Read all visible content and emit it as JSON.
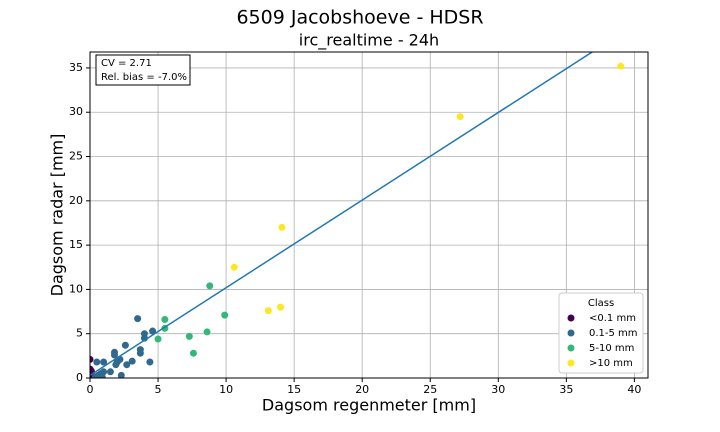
{
  "chart_data": {
    "type": "scatter",
    "title": "6509 Jacobshoeve - HDSR",
    "subtitle": "irc_realtime - 24h",
    "x_label": "Dagsom regenmeter [mm]",
    "y_label": "Dagsom radar [mm]",
    "annotations": [
      "CV = 2.71",
      "Rel. bias = -7.0%"
    ],
    "legend_title": "Class",
    "legend_position": "lower right",
    "grid": true,
    "xlim": [
      0,
      41
    ],
    "ylim": [
      0,
      36.8
    ],
    "xticks": [
      0,
      5,
      10,
      15,
      20,
      25,
      30,
      35,
      40
    ],
    "yticks": [
      0,
      5,
      10,
      15,
      20,
      25,
      30,
      35
    ],
    "fit_line": {
      "color": "#1f77b4",
      "x": [
        0,
        36.9
      ],
      "y": [
        0.3,
        36.8
      ]
    },
    "series": [
      {
        "name": "<0.1 mm",
        "color": "#440154",
        "x": [
          0,
          0,
          0,
          0.1,
          0.2,
          0,
          0.3
        ],
        "values": [
          2.1,
          1.0,
          0.5,
          0.8,
          0.2,
          0,
          0.1
        ]
      },
      {
        "name": "0.1-5 mm",
        "color": "#31688e",
        "x": [
          3.5,
          4.6,
          4.0,
          4.0,
          3.7,
          3.7,
          2.6,
          1.8,
          1.8,
          2.2,
          2.0,
          1.9,
          3.1,
          2.7,
          4.4,
          0.5,
          1.0,
          1.5,
          2.3,
          0.8,
          1.0,
          0.6,
          0.4,
          0.9
        ],
        "values": [
          6.7,
          5.3,
          5.0,
          4.5,
          3.2,
          2.8,
          3.7,
          2.9,
          2.6,
          2.1,
          1.8,
          1.5,
          1.9,
          1.5,
          1.8,
          1.8,
          1.8,
          0.7,
          0.3,
          0.5,
          0.7,
          0.3,
          0.1,
          0.1
        ]
      },
      {
        "name": "5-10 mm",
        "color": "#35b779",
        "x": [
          5.5,
          5.5,
          5.0,
          7.3,
          7.6,
          8.6,
          8.8,
          9.9
        ],
        "values": [
          6.6,
          5.6,
          4.4,
          4.7,
          2.8,
          5.2,
          10.4,
          7.1
        ]
      },
      {
        "name": ">10 mm",
        "color": "#fde725",
        "x": [
          10.6,
          14.1,
          13.1,
          14.0,
          27.2,
          39.0
        ],
        "values": [
          12.5,
          17.0,
          7.6,
          8.0,
          29.5,
          35.2
        ]
      }
    ]
  }
}
